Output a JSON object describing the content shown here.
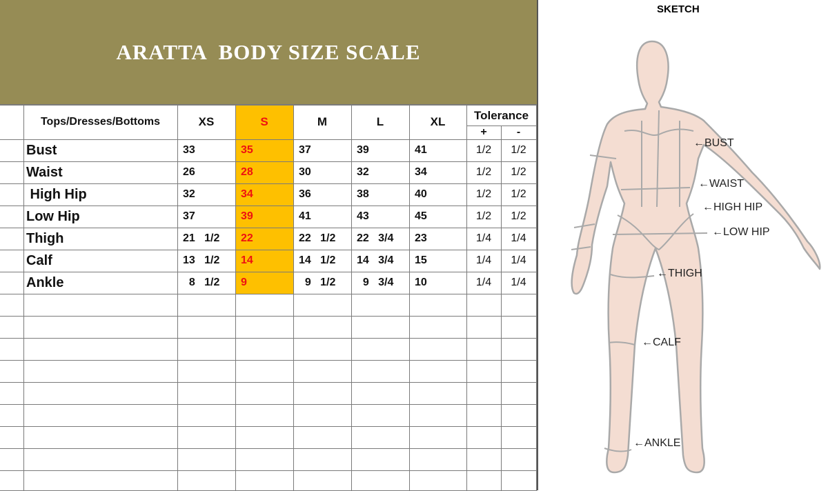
{
  "title": "ARATTA  BODY SIZE SCALE",
  "table": {
    "category_header": "Tops/Dresses/Bottoms",
    "sizes": [
      "XS",
      "S",
      "M",
      "L",
      "XL"
    ],
    "highlight_size": "S",
    "highlight_color": "#fec000",
    "tolerance_header": "Tolerance",
    "tolerance_sub": [
      "+",
      "-"
    ],
    "rows": [
      {
        "label": "Bust",
        "values": [
          "33",
          "35",
          "37",
          "39",
          "41"
        ],
        "tol": [
          "1/2",
          "1/2"
        ]
      },
      {
        "label": "Waist",
        "values": [
          "26",
          "28",
          "30",
          "32",
          "34"
        ],
        "tol": [
          "1/2",
          "1/2"
        ]
      },
      {
        "label": " High Hip",
        "values": [
          "32",
          "34",
          "36",
          "38",
          "40"
        ],
        "tol": [
          "1/2",
          "1/2"
        ]
      },
      {
        "label": "Low Hip",
        "values": [
          "37",
          "39",
          "41",
          "43",
          "45"
        ],
        "tol": [
          "1/2",
          "1/2"
        ]
      },
      {
        "label": "Thigh",
        "values": [
          "21   1/2",
          "22",
          "22   1/2",
          "22   3/4",
          "23"
        ],
        "tol": [
          "1/4",
          "1/4"
        ]
      },
      {
        "label": "Calf",
        "values": [
          "13   1/2",
          "14",
          "14   1/2",
          "14   3/4",
          "15"
        ],
        "tol": [
          "1/4",
          "1/4"
        ]
      },
      {
        "label": "Ankle",
        "values": [
          "  8   1/2",
          "9",
          "  9   1/2",
          "  9   3/4",
          "10"
        ],
        "tol": [
          "1/4",
          "1/4"
        ]
      }
    ]
  },
  "sketch": {
    "title": "SKETCH",
    "labels": [
      "←BUST",
      "←WAIST",
      "←HIGH HIP",
      "←LOW HIP",
      "←THIGH",
      "←CALF",
      "←ANKLE"
    ]
  }
}
